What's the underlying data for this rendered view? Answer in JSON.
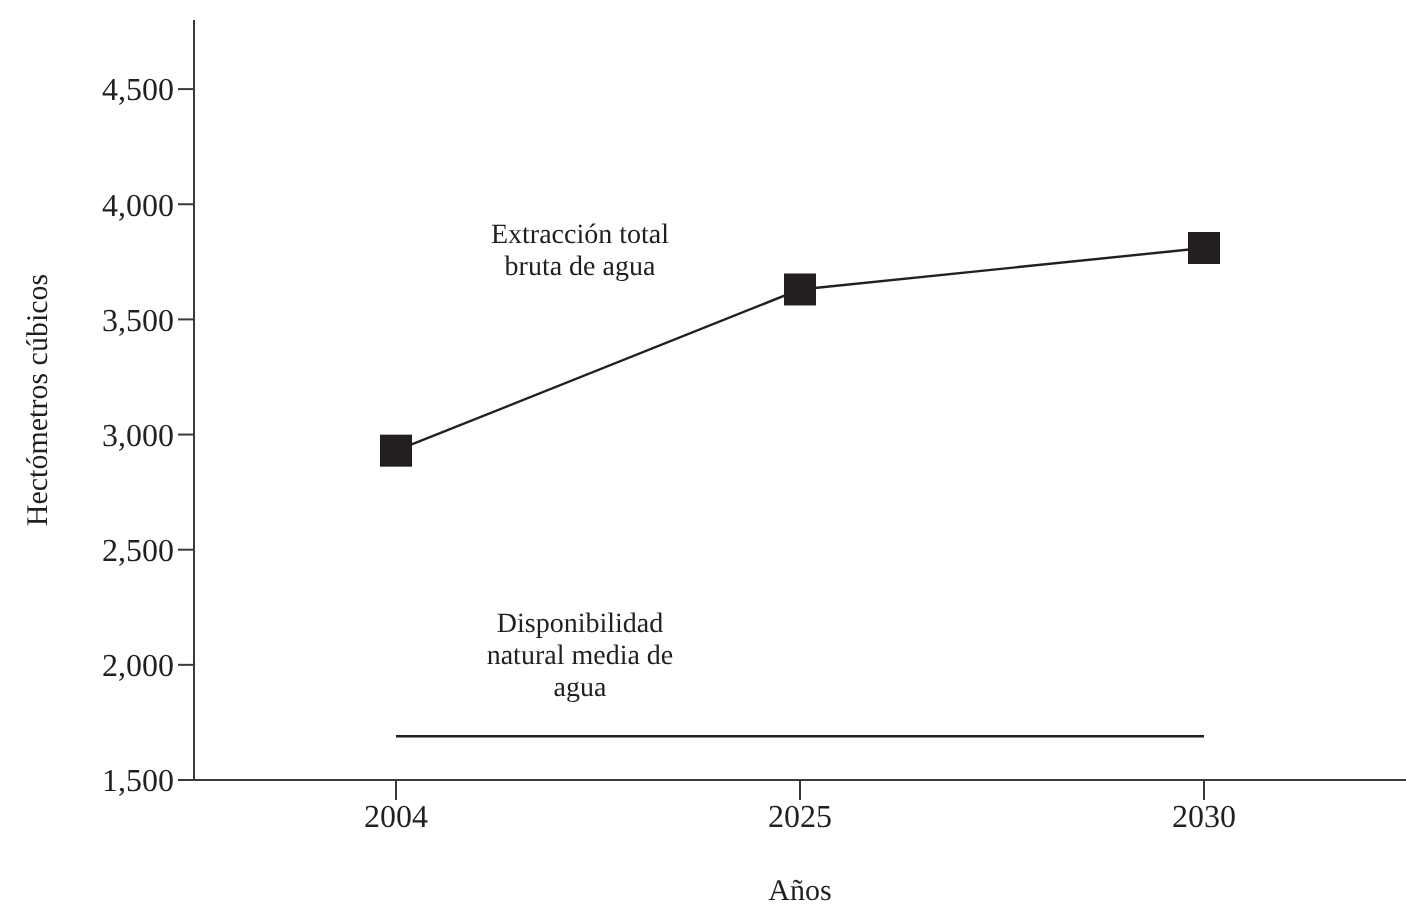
{
  "chart_data": {
    "type": "line",
    "xlabel": "Años",
    "ylabel": "Hectómetros cúbicos",
    "categories": [
      "2004",
      "2025",
      "2030"
    ],
    "series": [
      {
        "name": "Extracción total bruta de agua",
        "color": "#231f20",
        "values": [
          2930,
          3630,
          3810
        ],
        "marker": "square"
      },
      {
        "name": "Disponibilidad natural media de agua",
        "color": "#231f20",
        "values": [
          1690,
          1690,
          1690
        ],
        "marker": "none"
      }
    ],
    "ylim": [
      1500,
      4800
    ],
    "yticks": [
      {
        "value": 1500,
        "label": "1,500"
      },
      {
        "value": 2000,
        "label": "2,000"
      },
      {
        "value": 2500,
        "label": "2,500"
      },
      {
        "value": 3000,
        "label": "3,000"
      },
      {
        "value": 3500,
        "label": "3,500"
      },
      {
        "value": 4000,
        "label": "4,000"
      },
      {
        "value": 4500,
        "label": "4,500"
      }
    ],
    "grid": false,
    "legend": false,
    "line_style": "solid"
  }
}
